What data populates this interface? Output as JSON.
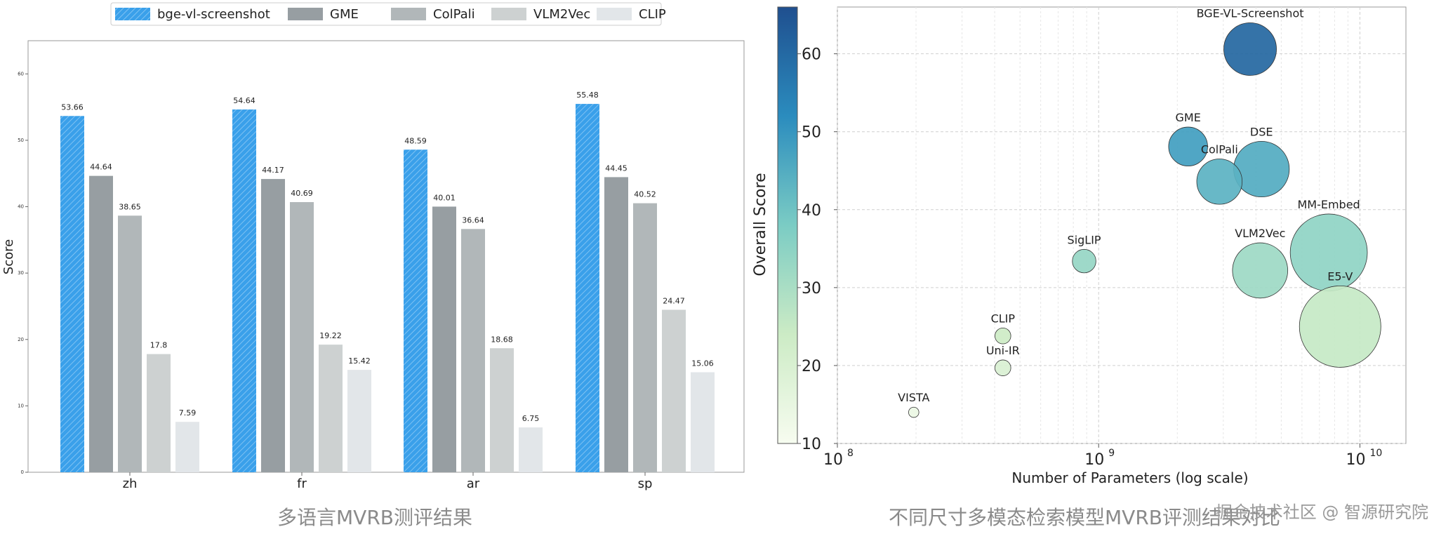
{
  "colors": {
    "bge": "#3aa0ea",
    "GME": "#979ea2",
    "ColPali": "#b1b7b9",
    "VLM2Vec": "#cdd1d1",
    "CLIP": "#e2e6e9"
  },
  "captions": {
    "left": "多语言MVRB测评结果",
    "right": "不同尺寸多模态检索模型MVRB评测结果对比",
    "watermark": "掘金技术社区 @ 智源研究院"
  },
  "chart_data": [
    {
      "type": "bar",
      "categories": [
        "zh",
        "fr",
        "ar",
        "sp"
      ],
      "series": [
        {
          "name": "bge-vl-screenshot",
          "values": [
            53.66,
            54.64,
            48.59,
            55.48
          ]
        },
        {
          "name": "GME",
          "values": [
            44.64,
            44.17,
            40.01,
            44.45
          ]
        },
        {
          "name": "ColPali",
          "values": [
            38.65,
            40.69,
            36.64,
            40.52
          ]
        },
        {
          "name": "VLM2Vec",
          "values": [
            17.8,
            19.22,
            18.68,
            24.47
          ]
        },
        {
          "name": "CLIP",
          "values": [
            7.59,
            15.42,
            6.75,
            15.06
          ]
        }
      ],
      "ylabel": "Score",
      "ylim": [
        0,
        65
      ],
      "yticks": [
        0,
        10,
        20,
        30,
        40,
        50,
        60
      ],
      "legend": "top",
      "grid": false
    },
    {
      "type": "scatter",
      "xlabel": "Number of Parameters (log scale)",
      "ylabel": "Overall Score",
      "x_scale": "log",
      "xlim": [
        100000000,
        15000000000
      ],
      "ylim": [
        10,
        66
      ],
      "yticks": [
        10,
        20,
        30,
        40,
        50,
        60
      ],
      "xtick_labels": [
        "10",
        "10",
        "10"
      ],
      "xtick_exponents": [
        "8",
        "9",
        "10"
      ],
      "xticks": [
        100000000,
        1000000000,
        10000000000
      ],
      "colorbar": {
        "min": 10,
        "max": 66
      },
      "grid": true,
      "points": [
        {
          "label": "BGE-VL-Screenshot",
          "params": 3800000000,
          "score": 60.6
        },
        {
          "label": "GME",
          "params": 2200000000,
          "score": 48.1
        },
        {
          "label": "DSE",
          "params": 4200000000,
          "score": 45.2
        },
        {
          "label": "ColPali",
          "params": 2900000000,
          "score": 43.6
        },
        {
          "label": "MM-Embed",
          "params": 7600000000,
          "score": 34.5
        },
        {
          "label": "SigLIP",
          "params": 880000000,
          "score": 33.4
        },
        {
          "label": "VLM2Vec",
          "params": 4150000000,
          "score": 32.2
        },
        {
          "label": "E5-V",
          "params": 8400000000,
          "score": 25.0
        },
        {
          "label": "CLIP",
          "params": 430000000,
          "score": 23.8
        },
        {
          "label": "Uni-IR",
          "params": 430000000,
          "score": 19.7
        },
        {
          "label": "VISTA",
          "params": 196000000,
          "score": 14.0
        }
      ]
    }
  ]
}
